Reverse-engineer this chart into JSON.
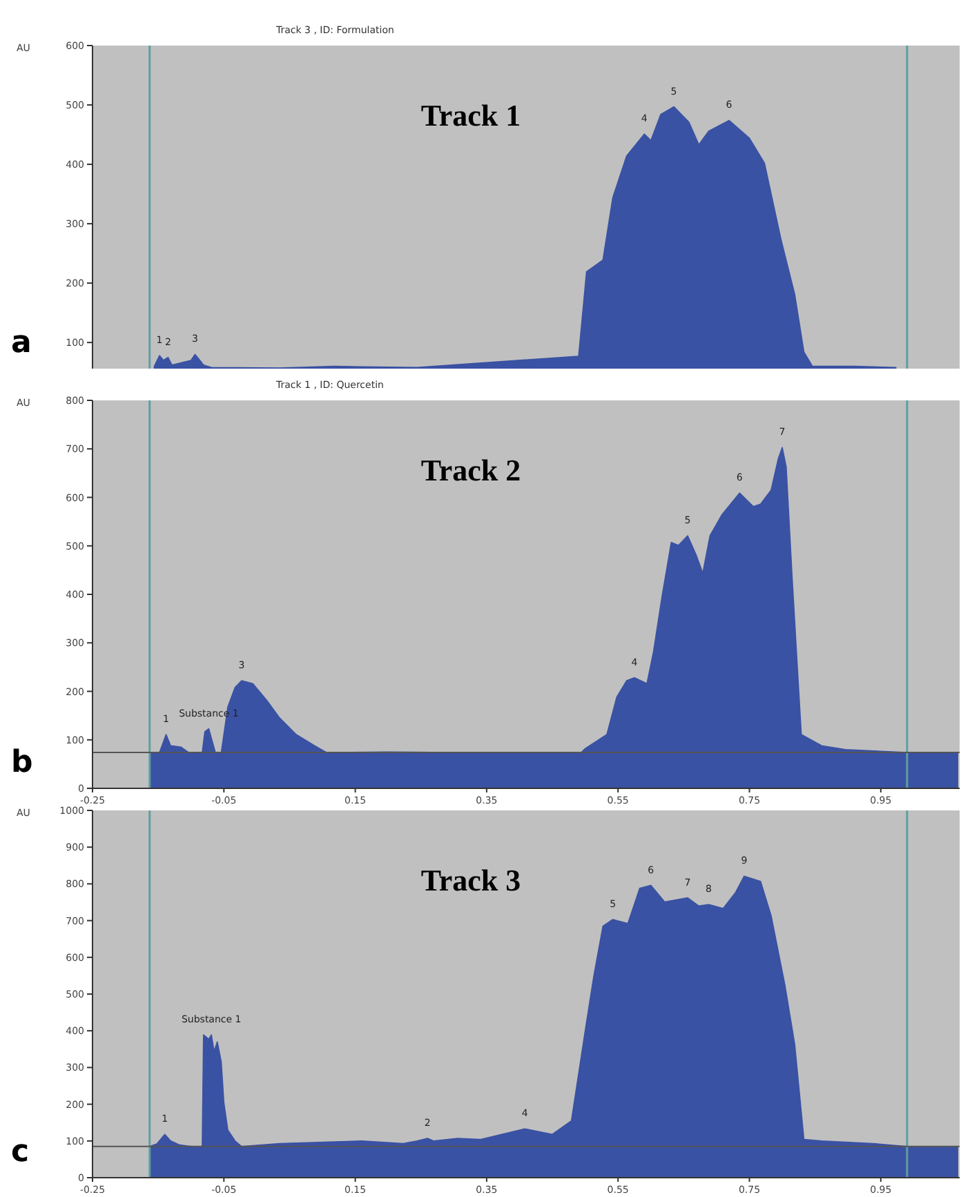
{
  "chart_data": [
    {
      "type": "area",
      "title": "Track 1",
      "subtitle": "Track 3 , ID: Formulation",
      "ylabel": "AU",
      "xlim": [
        -0.25,
        1.07
      ],
      "ylim": [
        56,
        600
      ],
      "yticks": [
        100,
        200,
        300,
        400,
        500,
        600
      ],
      "tick_labels": "y",
      "x": [
        -0.156,
        -0.148,
        -0.142,
        -0.135,
        -0.129,
        -0.1,
        -0.094,
        -0.088,
        -0.081,
        -0.069,
        0.035,
        0.119,
        0.16,
        0.244,
        0.49,
        0.502,
        0.527,
        0.542,
        0.563,
        0.59,
        0.6,
        0.615,
        0.635,
        0.658,
        0.673,
        0.688,
        0.719,
        0.75,
        0.773,
        0.798,
        0.819,
        0.833,
        0.846,
        0.91,
        0.973
      ],
      "series": [
        {
          "color": "#3a52a3",
          "values": [
            60,
            78,
            70,
            75,
            62,
            70,
            80,
            72,
            62,
            58,
            57,
            60,
            59,
            58,
            77,
            219,
            239,
            344,
            414,
            451,
            440,
            484,
            497,
            471,
            433,
            456,
            474,
            444,
            402,
            274,
            181,
            84,
            60,
            60,
            58
          ]
        }
      ],
      "ref_lines": [
        {
          "axis": "x",
          "value": -0.163,
          "color": "#5f9f9f"
        },
        {
          "axis": "x",
          "value": 0.99,
          "color": "#5f9f9f"
        }
      ],
      "annotations": [
        "a",
        {
          "text": "1",
          "x": -0.148,
          "y": 78
        },
        {
          "text": "2",
          "x": -0.135,
          "y": 75
        },
        {
          "text": "3",
          "x": -0.094,
          "y": 80
        },
        {
          "text": "4",
          "x": 0.59,
          "y": 451
        },
        {
          "text": "5",
          "x": 0.635,
          "y": 497
        },
        {
          "text": "6",
          "x": 0.719,
          "y": 474
        }
      ]
    },
    {
      "type": "area",
      "title": "Track 2",
      "subtitle": "Track 1 , ID: Quercetin",
      "ylabel": "AU",
      "xlim": [
        -0.25,
        1.07
      ],
      "ylim": [
        0,
        800
      ],
      "xticks": [
        -0.25,
        -0.05,
        0.15,
        0.35,
        0.55,
        0.75,
        0.95
      ],
      "yticks": [
        0,
        100,
        200,
        300,
        400,
        500,
        600,
        700,
        800
      ],
      "x": [
        -0.163,
        -0.148,
        -0.138,
        -0.131,
        -0.115,
        -0.104,
        -0.083,
        -0.079,
        -0.073,
        -0.063,
        -0.054,
        -0.044,
        -0.033,
        -0.023,
        -0.006,
        0.015,
        0.035,
        0.06,
        0.088,
        0.106,
        0.2,
        0.3,
        0.494,
        0.5,
        0.533,
        0.548,
        0.563,
        0.575,
        0.594,
        0.604,
        0.617,
        0.631,
        0.642,
        0.656,
        0.669,
        0.679,
        0.69,
        0.708,
        0.735,
        0.756,
        0.767,
        0.783,
        0.794,
        0.8,
        0.806,
        0.815,
        0.829,
        0.86,
        0.896,
        0.99,
        1.067
      ],
      "series": [
        {
          "color": "#3a52a3",
          "values": [
            74,
            74,
            111,
            88,
            85,
            74,
            74,
            117,
            123,
            74,
            74,
            168,
            208,
            222,
            216,
            182,
            145,
            111,
            88,
            74,
            75,
            74,
            74,
            82,
            111,
            188,
            222,
            228,
            216,
            282,
            396,
            507,
            501,
            521,
            481,
            444,
            521,
            564,
            609,
            581,
            586,
            615,
            680,
            703,
            663,
            436,
            111,
            88,
            80,
            74,
            74
          ]
        }
      ],
      "ref_lines": [
        {
          "axis": "x",
          "value": -0.163,
          "color": "#5f9f9f"
        },
        {
          "axis": "x",
          "value": 0.99,
          "color": "#5f9f9f"
        },
        {
          "axis": "y",
          "value": 74,
          "color": "#555555"
        }
      ],
      "annotations": [
        "b",
        {
          "text": "1",
          "x": -0.138,
          "y": 111
        },
        {
          "text": "Substance 1",
          "x": -0.073,
          "y": 123
        },
        {
          "text": "3",
          "x": -0.023,
          "y": 222
        },
        {
          "text": "4",
          "x": 0.575,
          "y": 228
        },
        {
          "text": "5",
          "x": 0.656,
          "y": 521
        },
        {
          "text": "6",
          "x": 0.735,
          "y": 609
        },
        {
          "text": "7",
          "x": 0.8,
          "y": 703
        }
      ]
    },
    {
      "type": "area",
      "title": "Track 3",
      "ylabel": "AU",
      "xlim": [
        -0.25,
        1.07
      ],
      "ylim": [
        0,
        1000
      ],
      "xticks": [
        -0.25,
        -0.05,
        0.15,
        0.35,
        0.55,
        0.75,
        0.95
      ],
      "yticks": [
        0,
        100,
        200,
        300,
        400,
        500,
        600,
        700,
        800,
        900,
        1000
      ],
      "x": [
        -0.163,
        -0.152,
        -0.14,
        -0.131,
        -0.117,
        -0.1,
        -0.083,
        -0.081,
        -0.073,
        -0.069,
        -0.065,
        -0.06,
        -0.054,
        -0.05,
        -0.044,
        -0.033,
        -0.023,
        0.035,
        0.16,
        0.223,
        0.244,
        0.26,
        0.269,
        0.306,
        0.34,
        0.408,
        0.45,
        0.479,
        0.5,
        0.513,
        0.527,
        0.542,
        0.565,
        0.583,
        0.6,
        0.621,
        0.656,
        0.673,
        0.688,
        0.71,
        0.729,
        0.742,
        0.767,
        0.783,
        0.804,
        0.819,
        0.833,
        0.86,
        0.938,
        0.99,
        1.067
      ],
      "series": [
        {
          "color": "#3a52a3",
          "values": [
            85,
            92,
            118,
            100,
            89,
            85,
            85,
            389,
            377,
            389,
            344,
            370,
            315,
            204,
            130,
            100,
            85,
            93,
            100,
            93,
            100,
            107,
            100,
            107,
            104,
            133,
            118,
            155,
            400,
            548,
            685,
            703,
            692,
            788,
            796,
            751,
            762,
            740,
            744,
            733,
            777,
            821,
            807,
            714,
            525,
            363,
            104,
            100,
            93,
            85,
            85
          ]
        }
      ],
      "ref_lines": [
        {
          "axis": "x",
          "value": -0.163,
          "color": "#5f9f9f"
        },
        {
          "axis": "x",
          "value": 0.99,
          "color": "#5f9f9f"
        },
        {
          "axis": "y",
          "value": 85,
          "color": "#555555"
        }
      ],
      "annotations": [
        "c",
        {
          "text": "1",
          "x": -0.14,
          "y": 118
        },
        {
          "text": "Substance 1",
          "x": -0.069,
          "y": 389
        },
        {
          "text": "2",
          "x": 0.26,
          "y": 107
        },
        {
          "text": "4",
          "x": 0.408,
          "y": 133
        },
        {
          "text": "5",
          "x": 0.542,
          "y": 703
        },
        {
          "text": "6",
          "x": 0.6,
          "y": 796
        },
        {
          "text": "7",
          "x": 0.656,
          "y": 762
        },
        {
          "text": "8",
          "x": 0.688,
          "y": 744
        },
        {
          "text": "9",
          "x": 0.742,
          "y": 821
        }
      ]
    }
  ]
}
